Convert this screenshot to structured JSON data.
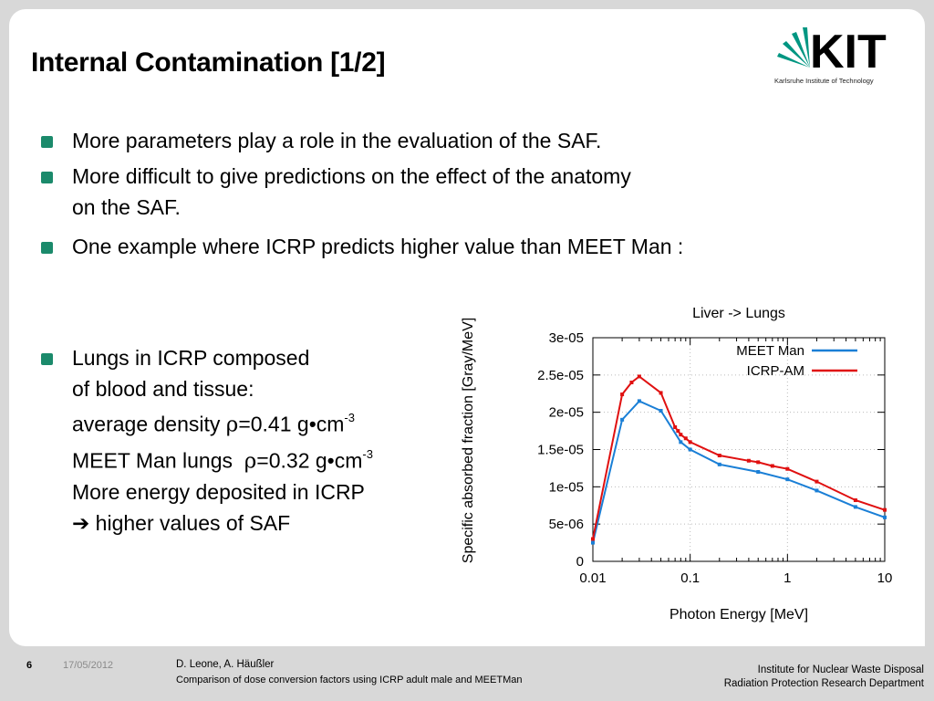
{
  "title": "Internal Contamination [1/2]",
  "logo": {
    "text": "KIT",
    "subtitle": "Karlsruhe Institute of Technology"
  },
  "bullets": [
    {
      "lines": [
        "More parameters play a role in the evaluation of the SAF."
      ]
    },
    {
      "lines": [
        "More difficult to give predictions on the effect of the anatomy",
        "on the SAF."
      ]
    },
    {
      "lines": [
        "One example where ICRP predicts higher value than MEET Man :"
      ]
    }
  ],
  "lungs": {
    "line1": "Lungs in ICRP composed",
    "line2": "of blood and tissue:",
    "line3_pre": "average density ",
    "line3_rho": "ρ",
    "line3_val": "=0.41 g•cm",
    "line3_exp": "-3",
    "line4_pre": "MEET Man lungs  ",
    "line4_rho": "ρ",
    "line4_val": "=0.32 g•cm",
    "line4_exp": "-3",
    "line5": "More energy deposited in ICRP",
    "line6_arrow": "➔",
    "line6": " higher values of SAF"
  },
  "chart_data": {
    "type": "line",
    "title": "Liver -> Lungs",
    "xlabel": "Photon Energy [MeV]",
    "ylabel": "Specific absorbed fraction [Gray/MeV]",
    "xscale": "log",
    "xlim": [
      0.01,
      10
    ],
    "ylim": [
      0,
      3e-05
    ],
    "xticks": [
      "0.01",
      "0.1",
      "1",
      "10"
    ],
    "yticks": [
      "0",
      "5e-06",
      "1e-05",
      "1.5e-05",
      "2e-05",
      "2.5e-05",
      "3e-05"
    ],
    "grid": true,
    "legend_position": "top-right",
    "series": [
      {
        "name": "MEET Man",
        "color": "#1a7fd6",
        "x": [
          0.01,
          0.02,
          0.03,
          0.05,
          0.08,
          0.1,
          0.2,
          0.5,
          1,
          2,
          5,
          10
        ],
        "y": [
          2.5e-06,
          1.9e-05,
          2.15e-05,
          2.02e-05,
          1.6e-05,
          1.5e-05,
          1.3e-05,
          1.2e-05,
          1.1e-05,
          9.5e-06,
          7.3e-06,
          5.9e-06
        ]
      },
      {
        "name": "ICRP-AM",
        "color": "#e01010",
        "x": [
          0.01,
          0.02,
          0.025,
          0.03,
          0.05,
          0.07,
          0.075,
          0.08,
          0.09,
          0.1,
          0.2,
          0.4,
          0.5,
          0.7,
          1,
          2,
          5,
          10
        ],
        "y": [
          3e-06,
          2.24e-05,
          2.4e-05,
          2.48e-05,
          2.26e-05,
          1.8e-05,
          1.75e-05,
          1.7e-05,
          1.65e-05,
          1.6e-05,
          1.42e-05,
          1.35e-05,
          1.33e-05,
          1.28e-05,
          1.24e-05,
          1.07e-05,
          8.2e-06,
          6.9e-06
        ]
      }
    ]
  },
  "footer": {
    "page": "6",
    "date": "17/05/2012",
    "authors": "D. Leone, A. Häußler",
    "subtitle": "Comparison of dose conversion factors using ICRP adult male and MEETMan",
    "inst1": "Institute for Nuclear Waste Disposal",
    "inst2": "Radiation Protection Research Department"
  },
  "colors": {
    "bullet": "#1b8a6b",
    "logo_green": "#009682"
  }
}
